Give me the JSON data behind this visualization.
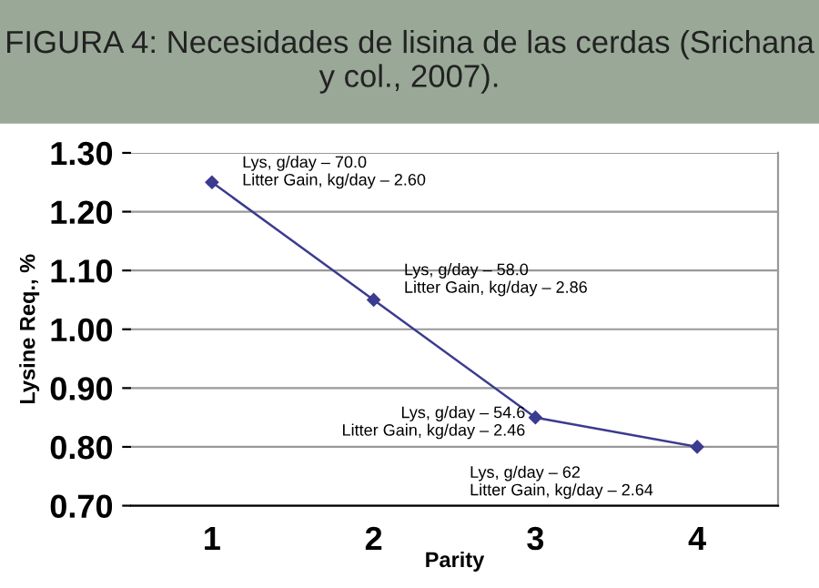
{
  "chart_data": {
    "type": "line",
    "title": "FIGURA 4: Necesidades de lisina de las cerdas (Srichana y col., 2007).",
    "xlabel": "Parity",
    "ylabel": "Lysine Req., %",
    "categories": [
      "1",
      "2",
      "3",
      "4"
    ],
    "series": [
      {
        "color": "#3b3b8f",
        "values": [
          1.25,
          1.05,
          0.85,
          0.8
        ]
      }
    ],
    "ylim": [
      0.7,
      1.3
    ],
    "yticks": [
      {
        "value": 0.7,
        "label": "0.70"
      },
      {
        "value": 0.8,
        "label": "0.80"
      },
      {
        "value": 0.9,
        "label": "0.90"
      },
      {
        "value": 1.0,
        "label": "1.00"
      },
      {
        "value": 1.1,
        "label": "1.10"
      },
      {
        "value": 1.2,
        "label": "1.20"
      },
      {
        "value": 1.3,
        "label": "1.30"
      }
    ],
    "grid": "y",
    "marker": "diamond",
    "line_style": "solid",
    "annotations": [
      {
        "text": "Lys, g/day – 70.0\nLitter Gain, kg/day – 2.60",
        "x": "1",
        "y": 1.25
      },
      {
        "text": "Lys, g/day – 58.0\nLitter Gain, kg/day – 2.86",
        "x": "2",
        "y": 1.05
      },
      {
        "text": "Lys, g/day – 54.6\nLitter Gain, kg/day – 2.46",
        "x": "3",
        "y": 0.85
      },
      {
        "text": "Lys, g/day – 62\nLitter Gain, kg/day – 2.64",
        "x": "4",
        "y": 0.8
      }
    ]
  }
}
